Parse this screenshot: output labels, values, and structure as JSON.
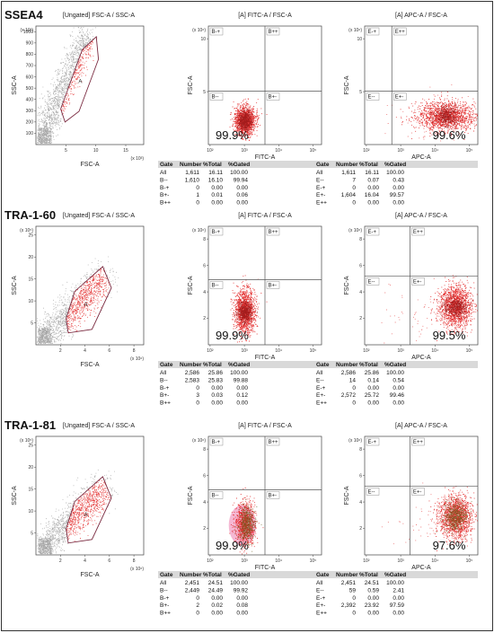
{
  "figure": {
    "sections": [
      {
        "marker": "SSEA4",
        "scatter": {
          "title": "[Ungated] FSC-A / SSC-A",
          "xlabel": "FSC-A",
          "ylabel": "SSC-A",
          "x_ticks": [
            "5",
            "10",
            "15"
          ],
          "x_exp": "(x 10³)",
          "x_max": 18,
          "y_ticks": [
            "100",
            "200",
            "300",
            "400",
            "500",
            "600",
            "700",
            "800",
            "900",
            "1000"
          ],
          "y_exp": "(x 10³)",
          "y_max": 1050,
          "gate_label": "A"
        },
        "fitc": {
          "title": "[A] FITC-A / FSC-A",
          "xlabel": "FITC-A",
          "ylabel": "FSC-A",
          "x_ticks": [
            "10²",
            "10³",
            "10⁴",
            "10⁵"
          ],
          "y_ticks": [
            "5",
            "10"
          ],
          "y_exp": "(x 10⁶)",
          "quadrants": [
            "B-+",
            "B++",
            "B--",
            "B+-"
          ],
          "percent": "99.9%"
        },
        "apc": {
          "title": "[A] APC-A / FSC-A",
          "xlabel": "APC-A",
          "ylabel": "FSC-A",
          "x_ticks": [
            "10²",
            "10³",
            "10⁴",
            "10⁵"
          ],
          "y_ticks": [
            "5",
            "10"
          ],
          "y_exp": "(x 10⁶)",
          "quadrants": [
            "E-+",
            "E++",
            "E--",
            "E+-"
          ],
          "percent": "99.6%"
        },
        "fitc_table": {
          "headers": [
            "Gate",
            "Number",
            "%Total",
            "%Gated"
          ],
          "rows": [
            [
              "All",
              "1,611",
              "16.11",
              "100.00"
            ],
            [
              "B--",
              "1,610",
              "16.10",
              "99.94"
            ],
            [
              "B-+",
              "0",
              "0.00",
              "0.00"
            ],
            [
              "B+-",
              "1",
              "0.01",
              "0.06"
            ],
            [
              "B++",
              "0",
              "0.00",
              "0.00"
            ]
          ]
        },
        "apc_table": {
          "headers": [
            "Gate",
            "Number",
            "%Total",
            "%Gated"
          ],
          "rows": [
            [
              "All",
              "1,611",
              "16.11",
              "100.00"
            ],
            [
              "E--",
              "7",
              "0.07",
              "0.43"
            ],
            [
              "E-+",
              "0",
              "0.00",
              "0.00"
            ],
            [
              "E+-",
              "1,604",
              "16.04",
              "99.57"
            ],
            [
              "E++",
              "0",
              "0.00",
              "0.00"
            ]
          ]
        }
      },
      {
        "marker": "TRA-1-60",
        "scatter": {
          "title": "[Ungated] FSC-A / SSC-A",
          "xlabel": "FSC-A",
          "ylabel": "SSC-A",
          "x_ticks": [
            "2",
            "4",
            "6",
            "8"
          ],
          "x_exp": "(x 10⁶)",
          "x_max": 8.8,
          "y_ticks": [
            "5",
            "10",
            "15",
            "20",
            "25"
          ],
          "y_exp": "(x 10⁵)",
          "y_max": 27,
          "gate_label": "A"
        },
        "fitc": {
          "title": "[A] FITC-A / FSC-A",
          "xlabel": "FITC-A",
          "ylabel": "FSC-A",
          "x_ticks": [
            "10²",
            "10³",
            "10⁴",
            "10⁵"
          ],
          "y_ticks": [
            "2",
            "4",
            "6",
            "8"
          ],
          "y_exp": "(x 10⁶)",
          "quadrants": [
            "B-+",
            "B++",
            "B--",
            "B+-"
          ],
          "percent": "99.9%"
        },
        "apc": {
          "title": "[A] APC-A / FSC-A",
          "xlabel": "APC-A",
          "ylabel": "FSC-A",
          "x_ticks": [
            "10²",
            "10³",
            "10⁴",
            "10⁵"
          ],
          "y_ticks": [
            "2",
            "4",
            "6",
            "8"
          ],
          "y_exp": "(x 10⁶)",
          "quadrants": [
            "E-+",
            "E++",
            "E--",
            "E+-"
          ],
          "percent": "99.5%"
        },
        "fitc_table": {
          "headers": [
            "Gate",
            "Number",
            "%Total",
            "%Gated"
          ],
          "rows": [
            [
              "All",
              "2,586",
              "25.86",
              "100.00"
            ],
            [
              "B--",
              "2,583",
              "25.83",
              "99.88"
            ],
            [
              "B-+",
              "0",
              "0.00",
              "0.00"
            ],
            [
              "B+-",
              "3",
              "0.03",
              "0.12"
            ],
            [
              "B++",
              "0",
              "0.00",
              "0.00"
            ]
          ]
        },
        "apc_table": {
          "headers": [
            "Gate",
            "Number",
            "%Total",
            "%Gated"
          ],
          "rows": [
            [
              "All",
              "2,586",
              "25.86",
              "100.00"
            ],
            [
              "E--",
              "14",
              "0.14",
              "0.54"
            ],
            [
              "E-+",
              "0",
              "0.00",
              "0.00"
            ],
            [
              "E+-",
              "2,572",
              "25.72",
              "99.46"
            ],
            [
              "E++",
              "0",
              "0.00",
              "0.00"
            ]
          ]
        }
      },
      {
        "marker": "TRA-1-81",
        "scatter": {
          "title": "[Ungated] FSC-A / SSC-A",
          "xlabel": "FSC-A",
          "ylabel": "SSC-A",
          "x_ticks": [
            "2",
            "4",
            "6",
            "8"
          ],
          "x_exp": "(x 10⁶)",
          "x_max": 8.8,
          "y_ticks": [
            "5",
            "10",
            "15",
            "20",
            "25"
          ],
          "y_exp": "(x 10⁵)",
          "y_max": 27,
          "gate_label": "A"
        },
        "fitc": {
          "title": "[A] FITC-A / FSC-A",
          "xlabel": "FITC-A",
          "ylabel": "FSC-A",
          "x_ticks": [
            "10²",
            "10³",
            "10⁴",
            "10⁵"
          ],
          "y_ticks": [
            "2",
            "4",
            "6",
            "8"
          ],
          "y_exp": "(x 10⁶)",
          "quadrants": [
            "B-+",
            "B++",
            "B--",
            "B+-"
          ],
          "percent": "99.9%"
        },
        "apc": {
          "title": "[A] APC-A / FSC-A",
          "xlabel": "APC-A",
          "ylabel": "FSC-A",
          "x_ticks": [
            "10²",
            "10³",
            "10⁴",
            "10⁵"
          ],
          "y_ticks": [
            "2",
            "4",
            "6",
            "8"
          ],
          "y_exp": "(x 10⁶)",
          "quadrants": [
            "E-+",
            "E++",
            "E--",
            "E+-"
          ],
          "percent": "97.6%"
        },
        "fitc_table": {
          "headers": [
            "Gate",
            "Number",
            "%Total",
            "%Gated"
          ],
          "rows": [
            [
              "All",
              "2,451",
              "24.51",
              "100.00"
            ],
            [
              "B--",
              "2,449",
              "24.49",
              "99.92"
            ],
            [
              "B-+",
              "0",
              "0.00",
              "0.00"
            ],
            [
              "B+-",
              "2",
              "0.02",
              "0.08"
            ],
            [
              "B++",
              "0",
              "0.00",
              "0.00"
            ]
          ]
        },
        "apc_table": {
          "headers": [
            "Gate",
            "Number",
            "%Total",
            "%Gated"
          ],
          "rows": [
            [
              "All",
              "2,451",
              "24.51",
              "100.00"
            ],
            [
              "E--",
              "59",
              "0.59",
              "2.41"
            ],
            [
              "E-+",
              "0",
              "0.00",
              "0.00"
            ],
            [
              "E+-",
              "2,392",
              "23.92",
              "97.59"
            ],
            [
              "E++",
              "0",
              "0.00",
              "0.00"
            ]
          ]
        }
      }
    ]
  },
  "colors": {
    "events_gated": "#e01515",
    "events_ungated": "#888888",
    "gate_line": "#7a2a40",
    "quadrant_line": "#555555",
    "table_header": "#d9d9d9",
    "overlay_tra181": "#f2a6c8",
    "brown_events": "#6a5a18"
  },
  "chart_data": [
    {
      "type": "scatter",
      "panel": "SSEA4 FSC-A/SSC-A ungated",
      "x_range": [
        0,
        18000
      ],
      "y_range": [
        0,
        1050000
      ],
      "x_unit": "FSC-A",
      "y_unit": "SSC-A",
      "gate": "A"
    },
    {
      "type": "scatter",
      "panel": "SSEA4 FITC-A/FSC-A",
      "quadrant_percent": {
        "B--": 99.94,
        "B-+": 0.0,
        "B+-": 0.06,
        "B++": 0.0
      }
    },
    {
      "type": "scatter",
      "panel": "SSEA4 APC-A/FSC-A",
      "quadrant_percent": {
        "E--": 0.43,
        "E-+": 0.0,
        "E+-": 99.57,
        "E++": 0.0
      }
    },
    {
      "type": "scatter",
      "panel": "TRA-1-60 FITC-A/FSC-A",
      "quadrant_percent": {
        "B--": 99.88,
        "B-+": 0.0,
        "B+-": 0.12,
        "B++": 0.0
      }
    },
    {
      "type": "scatter",
      "panel": "TRA-1-60 APC-A/FSC-A",
      "quadrant_percent": {
        "E--": 0.54,
        "E-+": 0.0,
        "E+-": 99.46,
        "E++": 0.0
      }
    },
    {
      "type": "scatter",
      "panel": "TRA-1-81 FITC-A/FSC-A",
      "quadrant_percent": {
        "B--": 99.92,
        "B-+": 0.0,
        "B+-": 0.08,
        "B++": 0.0
      }
    },
    {
      "type": "scatter",
      "panel": "TRA-1-81 APC-A/FSC-A",
      "quadrant_percent": {
        "E--": 2.41,
        "E-+": 0.0,
        "E+-": 97.59,
        "E++": 0.0
      }
    }
  ]
}
